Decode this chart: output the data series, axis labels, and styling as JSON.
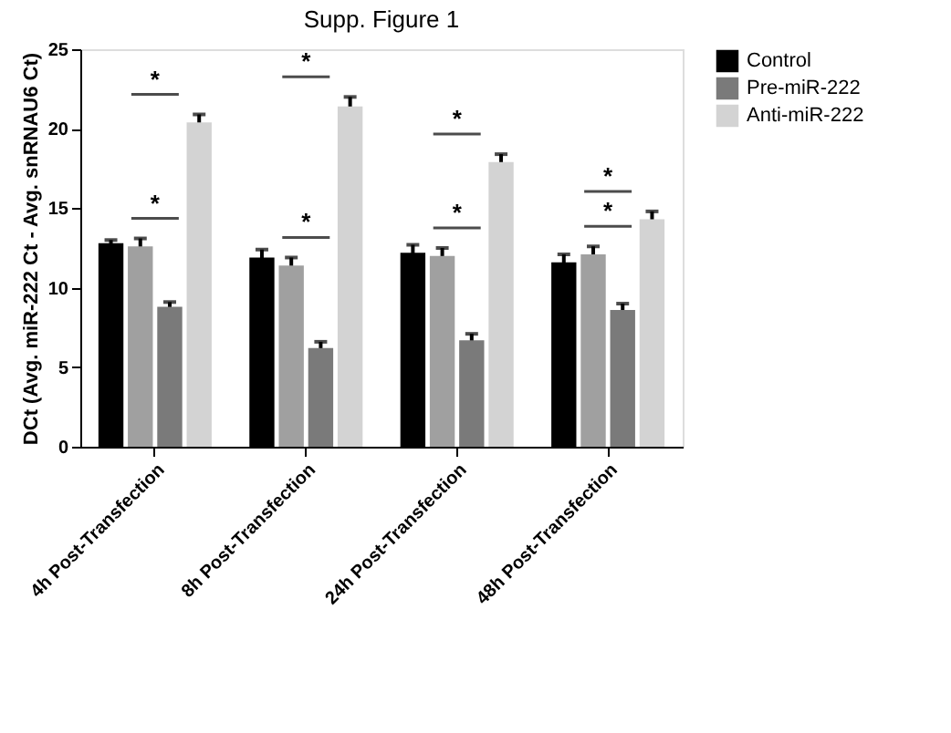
{
  "chart_data": {
    "type": "bar",
    "title": "Supp. Figure 1",
    "ylabel": "DCt (Avg. miR-222 Ct - Avg. snRNAU6 Ct)",
    "categories": [
      "4h Post-Transfection",
      "8h Post-Transfection",
      "24h Post-Transfection",
      "48h Post-Transfection"
    ],
    "series": [
      {
        "name": "Control",
        "color": "#000000",
        "values": [
          12.8,
          11.9,
          12.2,
          11.6
        ],
        "errors": [
          0.2,
          0.5,
          0.5,
          0.5
        ]
      },
      {
        "color": "#a0a0a0",
        "values": [
          12.6,
          11.4,
          12.0,
          12.1
        ],
        "errors": [
          0.5,
          0.5,
          0.5,
          0.5
        ]
      },
      {
        "name": "Pre-miR-222",
        "color": "#7a7a7a",
        "values": [
          8.8,
          6.2,
          6.7,
          8.6
        ],
        "errors": [
          0.3,
          0.4,
          0.4,
          0.4
        ]
      },
      {
        "name": "Anti-miR-222",
        "color": "#d3d3d3",
        "values": [
          20.4,
          21.4,
          17.9,
          14.3
        ],
        "errors": [
          0.5,
          0.6,
          0.5,
          0.5
        ]
      }
    ],
    "annotations": [
      "*",
      "*",
      "*",
      "*",
      "*",
      "*",
      "*",
      "*"
    ],
    "ylim": [
      0,
      25
    ],
    "yticks": [
      0,
      5,
      10,
      15,
      20,
      25
    ],
    "grid": false,
    "legend": "top right"
  }
}
